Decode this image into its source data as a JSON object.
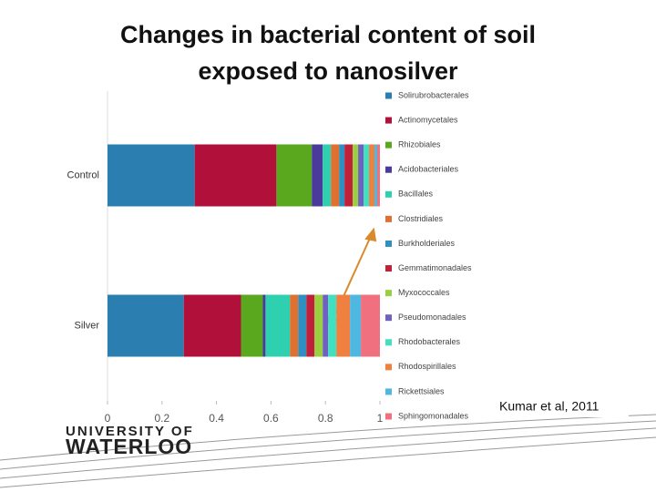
{
  "chart_data": {
    "type": "bar",
    "orientation": "horizontal",
    "stacked": true,
    "title": "Changes in bacterial content of soil exposed to nanosilver",
    "categories": [
      "Control",
      "Silver"
    ],
    "series": [
      {
        "name": "Solirubrobacterales",
        "color": "#2a7fb0",
        "values": [
          0.32,
          0.28
        ]
      },
      {
        "name": "Actinomycetales",
        "color": "#b0103a",
        "values": [
          0.3,
          0.21
        ]
      },
      {
        "name": "Rhizobiales",
        "color": "#5aa81e",
        "values": [
          0.13,
          0.08
        ]
      },
      {
        "name": "Acidobacteriales",
        "color": "#4b3a9c",
        "values": [
          0.04,
          0.01
        ]
      },
      {
        "name": "Bacillales",
        "color": "#2ed0b0",
        "values": [
          0.03,
          0.09
        ]
      },
      {
        "name": "Clostridiales",
        "color": "#e07030",
        "values": [
          0.03,
          0.03
        ]
      },
      {
        "name": "Burkholderiales",
        "color": "#2f8fc0",
        "values": [
          0.02,
          0.03
        ]
      },
      {
        "name": "Gemmatimonadales",
        "color": "#c0203a",
        "values": [
          0.03,
          0.03
        ]
      },
      {
        "name": "Myxococcales",
        "color": "#9ad040",
        "values": [
          0.02,
          0.03
        ]
      },
      {
        "name": "Pseudomonadales",
        "color": "#7060c0",
        "values": [
          0.02,
          0.02
        ]
      },
      {
        "name": "Rhodobacterales",
        "color": "#40e0c0",
        "values": [
          0.02,
          0.03
        ]
      },
      {
        "name": "Rhodospirillales",
        "color": "#f08040",
        "values": [
          0.02,
          0.05
        ]
      },
      {
        "name": "Rickettsiales",
        "color": "#50b8e0",
        "values": [
          0.01,
          0.04
        ]
      },
      {
        "name": "Sphingomonadales",
        "color": "#f07080",
        "values": [
          0.01,
          0.07
        ]
      }
    ],
    "xlim": [
      0,
      1
    ],
    "xticks": [
      0,
      0.2,
      0.4,
      0.6,
      0.8,
      1
    ],
    "grid": false,
    "legend": "right",
    "annotation": "Kumar et al, 2011"
  },
  "logo": {
    "line1": "UNIVERSITY OF",
    "line2": "WATERLOO"
  }
}
